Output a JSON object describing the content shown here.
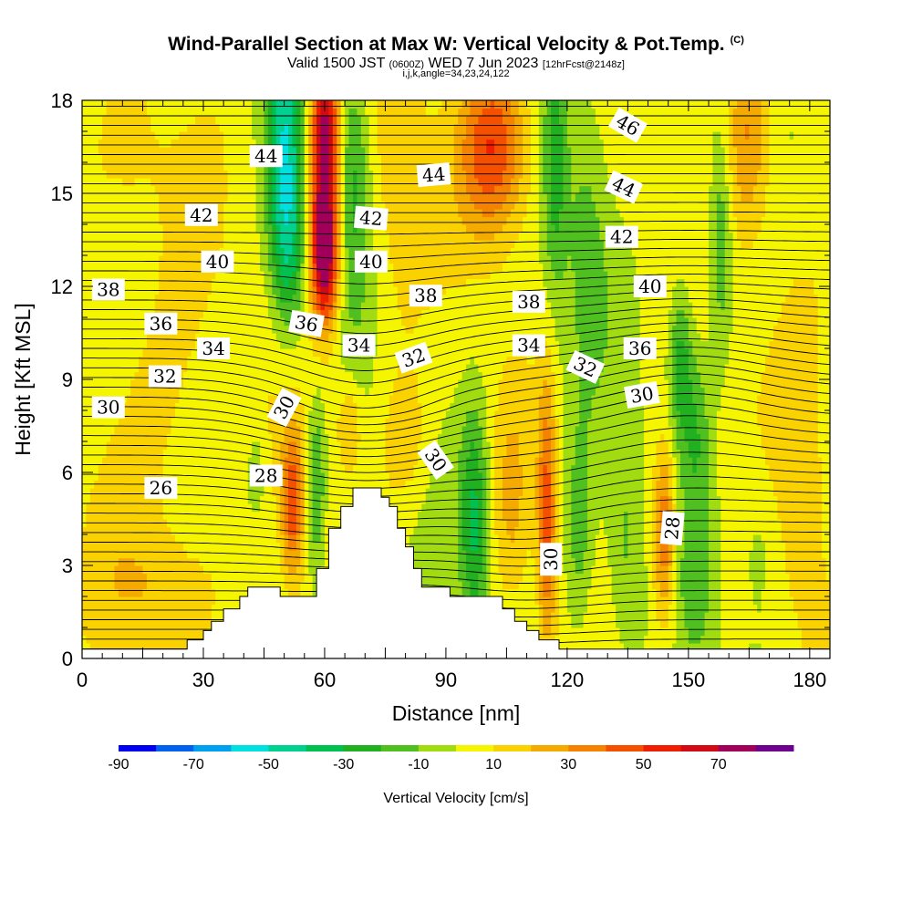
{
  "header": {
    "title": "Wind-Parallel Section at Max W: Vertical Velocity & Pot.Temp.",
    "copyright": "(C)",
    "valid_prefix": "Valid 1500 JST",
    "valid_zulu": "(0600Z)",
    "valid_date": "WED 7 Jun 2023",
    "forecast": "[12hrFcst@2148z]",
    "indices": "i,j,k,angle=34,23,24,122"
  },
  "chart_data": {
    "type": "heatmap",
    "title": "Wind-Parallel Section at Max W: Vertical Velocity & Pot.Temp.",
    "subtitle": "Valid 1500 JST (0600Z) WED 7 Jun 2023 [12hrFcst@2148z]",
    "xlabel": "Distance [nm]",
    "ylabel": "Height [Kft MSL]",
    "xlim": [
      0,
      185
    ],
    "ylim": [
      0,
      18
    ],
    "x_ticks": [
      0,
      30,
      60,
      90,
      120,
      150,
      180
    ],
    "y_ticks": [
      0,
      3,
      6,
      9,
      12,
      15,
      18
    ],
    "colorbar": {
      "label": "Vertical Velocity [cm/s]",
      "tick_labels": [
        "-90",
        "-70",
        "-50",
        "-30",
        "-10",
        "10",
        "30",
        "50",
        "70"
      ],
      "bounds": [
        -90,
        -80,
        -70,
        -60,
        -50,
        -40,
        -30,
        -20,
        -10,
        0,
        10,
        20,
        30,
        40,
        50,
        60,
        70,
        80
      ],
      "colors": [
        "#0000f0",
        "#0060f0",
        "#00a0f0",
        "#00e0e0",
        "#00d090",
        "#00c050",
        "#20b020",
        "#50c020",
        "#a0dc10",
        "#f5f500",
        "#fad200",
        "#f5aa00",
        "#f58200",
        "#f55000",
        "#f01e00",
        "#d20a14",
        "#a0005a",
        "#6e0090"
      ]
    },
    "terrain_kft": [
      [
        0,
        0.3
      ],
      [
        26,
        0.3
      ],
      [
        26,
        0.6
      ],
      [
        30,
        0.6
      ],
      [
        30,
        0.9
      ],
      [
        32,
        0.9
      ],
      [
        32,
        1.2
      ],
      [
        35,
        1.2
      ],
      [
        35,
        1.6
      ],
      [
        39,
        1.6
      ],
      [
        39,
        2.0
      ],
      [
        41,
        2.0
      ],
      [
        41,
        2.3
      ],
      [
        49,
        2.3
      ],
      [
        49,
        2.0
      ],
      [
        58,
        2.0
      ],
      [
        58,
        2.9
      ],
      [
        61,
        2.9
      ],
      [
        61,
        4.2
      ],
      [
        64,
        4.2
      ],
      [
        64,
        4.9
      ],
      [
        67,
        4.9
      ],
      [
        67,
        5.5
      ],
      [
        74,
        5.5
      ],
      [
        74,
        5.2
      ],
      [
        76,
        5.2
      ],
      [
        76,
        4.9
      ],
      [
        78,
        4.9
      ],
      [
        78,
        4.2
      ],
      [
        80,
        4.2
      ],
      [
        80,
        3.6
      ],
      [
        82,
        3.6
      ],
      [
        82,
        2.9
      ],
      [
        84,
        2.9
      ],
      [
        84,
        2.3
      ],
      [
        91,
        2.3
      ],
      [
        91,
        2.0
      ],
      [
        104,
        2.0
      ],
      [
        104,
        1.6
      ],
      [
        107,
        1.6
      ],
      [
        107,
        1.2
      ],
      [
        110,
        1.2
      ],
      [
        110,
        0.9
      ],
      [
        113,
        0.9
      ],
      [
        113,
        0.6
      ],
      [
        118,
        0.6
      ],
      [
        118,
        0.3
      ],
      [
        185,
        0.3
      ]
    ],
    "contour_labels": [
      {
        "text": "44",
        "x": 45.5,
        "y": 16.2,
        "angle": 0
      },
      {
        "text": "42",
        "x": 29.5,
        "y": 14.3,
        "angle": 0
      },
      {
        "text": "40",
        "x": 33.5,
        "y": 12.8,
        "angle": 0
      },
      {
        "text": "38",
        "x": 6.5,
        "y": 11.9,
        "angle": 0
      },
      {
        "text": "36",
        "x": 19.5,
        "y": 10.8,
        "angle": 0
      },
      {
        "text": "34",
        "x": 32.5,
        "y": 10.0,
        "angle": 0
      },
      {
        "text": "32",
        "x": 20.5,
        "y": 9.1,
        "angle": 0
      },
      {
        "text": "30",
        "x": 6.5,
        "y": 8.1,
        "angle": 0
      },
      {
        "text": "26",
        "x": 19.5,
        "y": 5.5,
        "angle": 0
      },
      {
        "text": "28",
        "x": 45.5,
        "y": 5.9,
        "angle": 0
      },
      {
        "text": "30",
        "x": 50.0,
        "y": 8.1,
        "angle": -62
      },
      {
        "text": "36",
        "x": 55.5,
        "y": 10.8,
        "angle": 10
      },
      {
        "text": "34",
        "x": 68.5,
        "y": 10.1,
        "angle": 0
      },
      {
        "text": "40",
        "x": 71.5,
        "y": 12.8,
        "angle": 0
      },
      {
        "text": "42",
        "x": 71.5,
        "y": 14.2,
        "angle": 5
      },
      {
        "text": "44",
        "x": 87.0,
        "y": 15.6,
        "angle": -5
      },
      {
        "text": "38",
        "x": 85.0,
        "y": 11.7,
        "angle": 0
      },
      {
        "text": "32",
        "x": 82.0,
        "y": 9.7,
        "angle": -20
      },
      {
        "text": "30",
        "x": 87.5,
        "y": 6.4,
        "angle": 55
      },
      {
        "text": "38",
        "x": 110.5,
        "y": 11.5,
        "angle": 0
      },
      {
        "text": "34",
        "x": 110.5,
        "y": 10.1,
        "angle": 0
      },
      {
        "text": "32",
        "x": 124.5,
        "y": 9.4,
        "angle": 25
      },
      {
        "text": "30",
        "x": 116.0,
        "y": 3.2,
        "angle": -90
      },
      {
        "text": "46",
        "x": 135.0,
        "y": 17.2,
        "angle": 30
      },
      {
        "text": "44",
        "x": 134.0,
        "y": 15.2,
        "angle": 25
      },
      {
        "text": "42",
        "x": 133.5,
        "y": 13.6,
        "angle": 0
      },
      {
        "text": "40",
        "x": 140.5,
        "y": 12.0,
        "angle": 0
      },
      {
        "text": "36",
        "x": 138.0,
        "y": 10.0,
        "angle": 0
      },
      {
        "text": "30",
        "x": 138.5,
        "y": 8.5,
        "angle": -10
      },
      {
        "text": "28",
        "x": 146.0,
        "y": 4.2,
        "angle": -85
      }
    ],
    "velocity_features": [
      {
        "x": 50,
        "y": 16.5,
        "sx": 3.0,
        "sy": 3.0,
        "v": -45
      },
      {
        "x": 51.5,
        "y": 13.0,
        "sx": 3.0,
        "sy": 2.0,
        "v": -25
      },
      {
        "x": 60,
        "y": 16.5,
        "sx": 2.5,
        "sy": 3.0,
        "v": 78
      },
      {
        "x": 60,
        "y": 12.8,
        "sx": 2.5,
        "sy": 1.5,
        "v": 50
      },
      {
        "x": 67,
        "y": 15.5,
        "sx": 3.0,
        "sy": 3.0,
        "v": -25
      },
      {
        "x": 78,
        "y": 15.0,
        "sx": 5.0,
        "sy": 4.0,
        "v": 14
      },
      {
        "x": 102,
        "y": 16.5,
        "sx": 6.0,
        "sy": 2.0,
        "v": 48
      },
      {
        "x": 117,
        "y": 16.0,
        "sx": 2.0,
        "sy": 3.0,
        "v": -25
      },
      {
        "x": 125,
        "y": 13.5,
        "sx": 4.0,
        "sy": 3.5,
        "v": -15
      },
      {
        "x": 165,
        "y": 17.0,
        "sx": 4.0,
        "sy": 2.5,
        "v": 30
      },
      {
        "x": 158,
        "y": 13.5,
        "sx": 2.0,
        "sy": 2.5,
        "v": -25
      },
      {
        "x": 148,
        "y": 9.5,
        "sx": 2.0,
        "sy": 1.8,
        "v": -30
      },
      {
        "x": 152,
        "y": 7.5,
        "sx": 2.5,
        "sy": 2.0,
        "v": -20
      },
      {
        "x": 52,
        "y": 5.0,
        "sx": 2.0,
        "sy": 1.8,
        "v": 42
      },
      {
        "x": 43,
        "y": 6.0,
        "sx": 1.5,
        "sy": 1.0,
        "v": -15
      },
      {
        "x": 58,
        "y": 5.5,
        "sx": 1.5,
        "sy": 2.0,
        "v": -25
      },
      {
        "x": 66,
        "y": 7.5,
        "sx": 2.0,
        "sy": 1.0,
        "v": 20
      },
      {
        "x": 80,
        "y": 7.0,
        "sx": 4.0,
        "sy": 1.5,
        "v": 15
      },
      {
        "x": 97,
        "y": 4.5,
        "sx": 2.5,
        "sy": 2.5,
        "v": -35
      },
      {
        "x": 106,
        "y": 5.0,
        "sx": 3.0,
        "sy": 2.5,
        "v": 15
      },
      {
        "x": 115,
        "y": 4.5,
        "sx": 1.6,
        "sy": 3.0,
        "v": 40
      },
      {
        "x": 123,
        "y": 4.0,
        "sx": 2.5,
        "sy": 2.5,
        "v": -20
      },
      {
        "x": 134,
        "y": 3.5,
        "sx": 3.0,
        "sy": 2.5,
        "v": -15
      },
      {
        "x": 144,
        "y": 4.0,
        "sx": 2.0,
        "sy": 2.0,
        "v": 40
      },
      {
        "x": 152,
        "y": 2.5,
        "sx": 3.0,
        "sy": 2.0,
        "v": -15
      },
      {
        "x": 168,
        "y": 4.0,
        "sx": 4.0,
        "sy": 2.0,
        "v": -12
      },
      {
        "x": 20,
        "y": 2.2,
        "sx": 12.0,
        "sy": 1.5,
        "v": 13
      },
      {
        "x": 20,
        "y": 8.5,
        "sx": 10.0,
        "sy": 4.0,
        "v": 12
      },
      {
        "x": 10,
        "y": 16.0,
        "sx": 8.0,
        "sy": 2.0,
        "v": 11
      },
      {
        "x": 178,
        "y": 8.0,
        "sx": 6.0,
        "sy": 5.0,
        "v": 14
      }
    ]
  }
}
